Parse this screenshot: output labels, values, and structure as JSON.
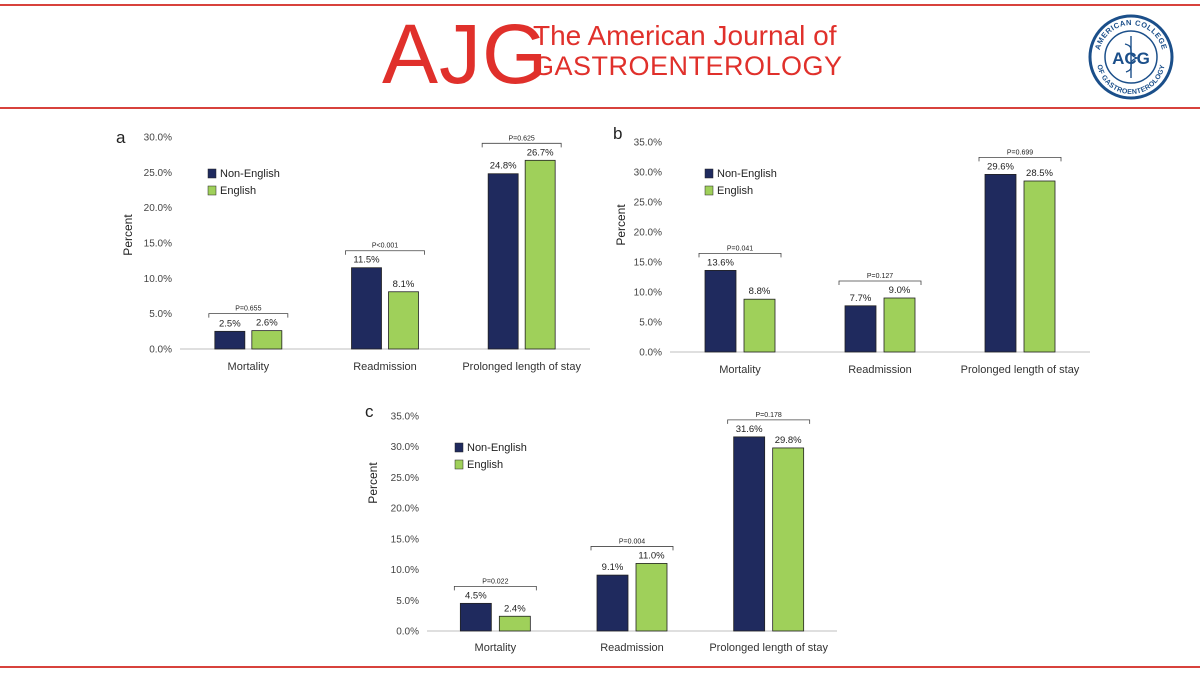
{
  "header": {
    "logo": "AJG",
    "journal_line1": "The American Journal of",
    "journal_line2": "GASTROENTEROLOGY",
    "seal_text_top": "AMERICAN COLLEGE",
    "seal_text_bottom": "OF GASTROENTEROLOGY",
    "seal_center": "ACG"
  },
  "colors": {
    "brand_red": "#e0302b",
    "non_english": "#1f2a5e",
    "english": "#9fd05a"
  },
  "chart_data": [
    {
      "type": "bar",
      "panel": "a",
      "ylabel": "Percent",
      "ylim": [
        0,
        30
      ],
      "yticks": [
        "0.0%",
        "5.0%",
        "10.0%",
        "15.0%",
        "20.0%",
        "25.0%",
        "30.0%"
      ],
      "categories": [
        "Mortality",
        "Readmission",
        "Prolonged length of stay"
      ],
      "series": [
        {
          "name": "Non-English",
          "values": [
            2.5,
            11.5,
            24.8
          ],
          "labels": [
            "2.5%",
            "11.5%",
            "24.8%"
          ]
        },
        {
          "name": "English",
          "values": [
            2.6,
            8.1,
            26.7
          ],
          "labels": [
            "2.6%",
            "8.1%",
            "26.7%"
          ]
        }
      ],
      "p_values": [
        "P=0.655",
        "P<0.001",
        "P=0.625"
      ],
      "legend": "top-left",
      "grid": false
    },
    {
      "type": "bar",
      "panel": "b",
      "ylabel": "Percent",
      "ylim": [
        0,
        35
      ],
      "yticks": [
        "0.0%",
        "5.0%",
        "10.0%",
        "15.0%",
        "20.0%",
        "25.0%",
        "30.0%",
        "35.0%"
      ],
      "categories": [
        "Mortality",
        "Readmission",
        "Prolonged length of stay"
      ],
      "series": [
        {
          "name": "Non-English",
          "values": [
            13.6,
            7.7,
            29.6
          ],
          "labels": [
            "13.6%",
            "7.7%",
            "29.6%"
          ]
        },
        {
          "name": "English",
          "values": [
            8.8,
            9.0,
            28.5
          ],
          "labels": [
            "8.8%",
            "9.0%",
            "28.5%"
          ]
        }
      ],
      "p_values": [
        "P=0.041",
        "P=0.127",
        "P=0.699"
      ],
      "legend": "top-left",
      "grid": false
    },
    {
      "type": "bar",
      "panel": "c",
      "ylabel": "Percent",
      "ylim": [
        0,
        35
      ],
      "yticks": [
        "0.0%",
        "5.0%",
        "10.0%",
        "15.0%",
        "20.0%",
        "25.0%",
        "30.0%",
        "35.0%"
      ],
      "categories": [
        "Mortality",
        "Readmission",
        "Prolonged length of stay"
      ],
      "series": [
        {
          "name": "Non-English",
          "values": [
            4.5,
            9.1,
            31.6
          ],
          "labels": [
            "4.5%",
            "9.1%",
            "31.6%"
          ]
        },
        {
          "name": "English",
          "values": [
            2.4,
            11.0,
            29.8
          ],
          "labels": [
            "2.4%",
            "11.0%",
            "29.8%"
          ]
        }
      ],
      "p_values": [
        "P=0.022",
        "P=0.004",
        "P=0.178"
      ],
      "legend": "top-left",
      "grid": false
    }
  ]
}
